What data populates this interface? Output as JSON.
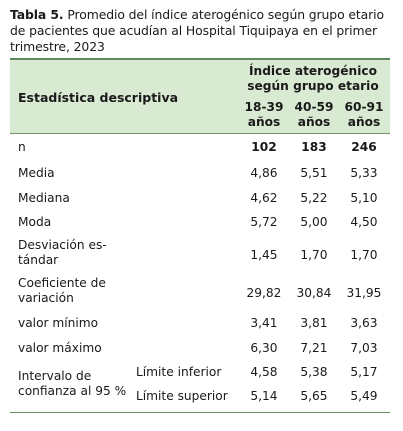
{
  "caption": {
    "lead": "Tabla 5.",
    "text": "Promedio del índice aterogénico según grupo etario de pacientes que acudían al Hospital Tiquipaya en el primer trimestre, 2023"
  },
  "table": {
    "header_left": "Estadística descriptiva",
    "group_title_line1": "Índice aterogénico",
    "group_title_line2": "según grupo etario",
    "columns": [
      {
        "line1": "18-39",
        "line2": "años"
      },
      {
        "line1": "40-59",
        "line2": "años"
      },
      {
        "line1": "60-91",
        "line2": "años"
      }
    ],
    "rows": [
      {
        "label": "n",
        "values": [
          "102",
          "183",
          "246"
        ]
      },
      {
        "label": "Media",
        "values": [
          "4,86",
          "5,51",
          "5,33"
        ]
      },
      {
        "label": "Mediana",
        "values": [
          "4,62",
          "5,22",
          "5,10"
        ]
      },
      {
        "label": "Moda",
        "values": [
          "5,72",
          "5,00",
          "4,50"
        ]
      },
      {
        "label_line1": "Desviación es-",
        "label_line2": "tándar",
        "values": [
          "1,45",
          "1,70",
          "1,70"
        ]
      },
      {
        "label_line1": "Coeficiente de",
        "label_line2": "variación",
        "values": [
          "29,82",
          "30,84",
          "31,95"
        ]
      },
      {
        "label": "valor mínimo",
        "values": [
          "3,41",
          "3,81",
          "3,63"
        ]
      },
      {
        "label": "valor máximo",
        "values": [
          "6,30",
          "7,21",
          "7,03"
        ]
      },
      {
        "label_line1": "Intervalo de",
        "label_line2": "confianza al 95 %",
        "subrows": [
          {
            "label": "Límite inferior",
            "values": [
              "4,58",
              "5,38",
              "5,17"
            ]
          },
          {
            "label": "Límite superior",
            "values": [
              "5,14",
              "5,65",
              "5,49"
            ]
          }
        ]
      }
    ]
  }
}
